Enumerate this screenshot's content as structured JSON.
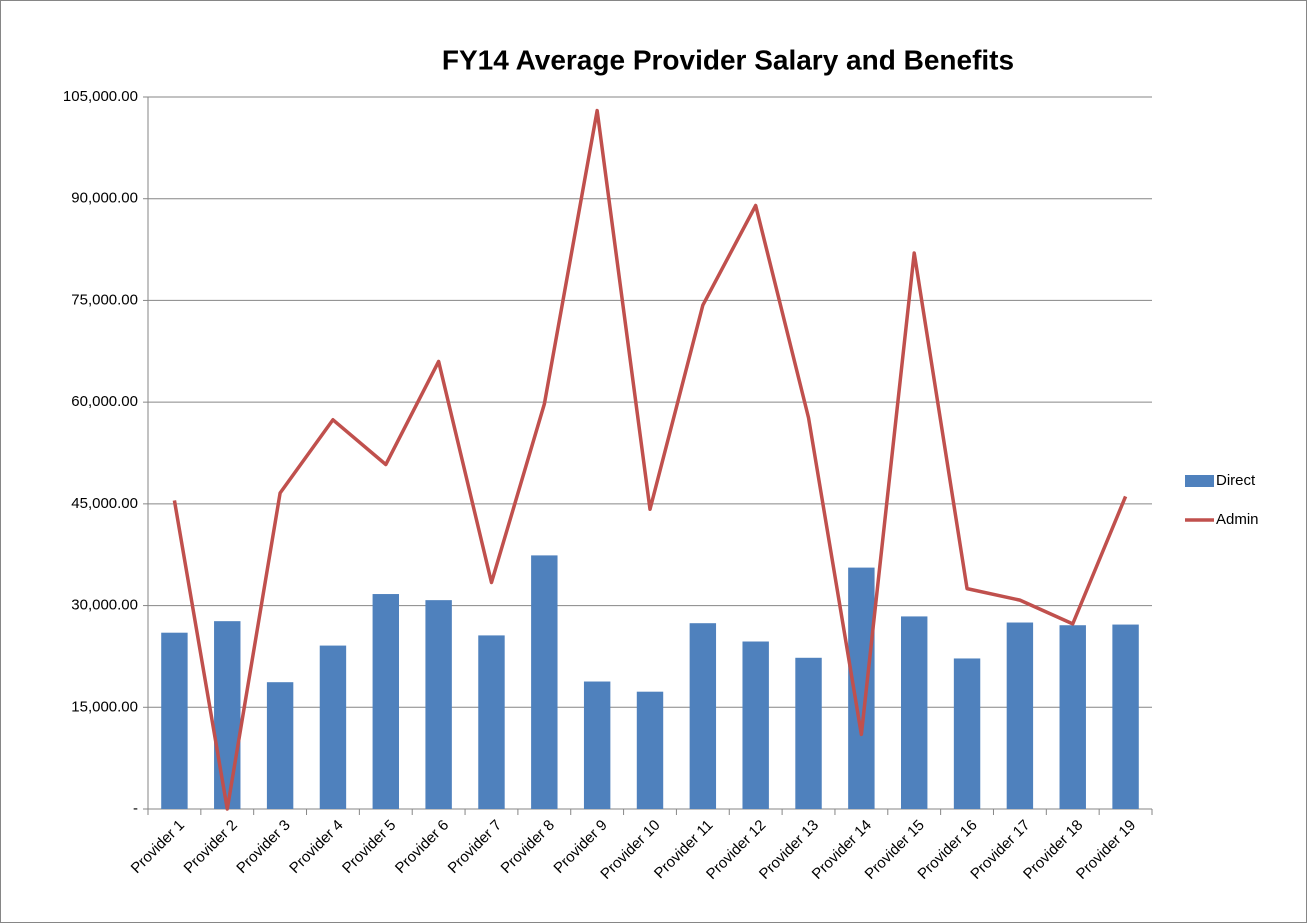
{
  "chart_data": {
    "type": "bar_line",
    "title": "FY14 Average Provider Salary and Benefits",
    "categories": [
      "Provider 1",
      "Provider 2",
      "Provider 3",
      "Provider 4",
      "Provider 5",
      "Provider 6",
      "Provider 7",
      "Provider 8",
      "Provider 9",
      "Provider 10",
      "Provider 11",
      "Provider 12",
      "Provider 13",
      "Provider 14",
      "Provider 15",
      "Provider 16",
      "Provider 17",
      "Provider 18",
      "Provider 19"
    ],
    "series": [
      {
        "name": "Direct",
        "type": "bar",
        "color": "#4f81bd",
        "values": [
          26000,
          27700,
          18700,
          24100,
          31700,
          30800,
          25600,
          37400,
          18800,
          17300,
          27400,
          24700,
          22300,
          35600,
          28400,
          22200,
          27500,
          27100,
          27200
        ]
      },
      {
        "name": "Admin",
        "type": "line",
        "color": "#c0504d",
        "values": [
          45500,
          0,
          46600,
          57400,
          50800,
          66000,
          33400,
          59700,
          103000,
          44200,
          74300,
          89000,
          57700,
          11000,
          82000,
          32500,
          30800,
          27300,
          46100
        ]
      }
    ],
    "ylim": [
      0,
      105000
    ],
    "yticks": [
      {
        "value": 0,
        "label": "-"
      },
      {
        "value": 15000,
        "label": "15,000.00"
      },
      {
        "value": 30000,
        "label": "30,000.00"
      },
      {
        "value": 45000,
        "label": "45,000.00"
      },
      {
        "value": 60000,
        "label": "60,000.00"
      },
      {
        "value": 75000,
        "label": "75,000.00"
      },
      {
        "value": 90000,
        "label": "90,000.00"
      },
      {
        "value": 105000,
        "label": "105,000.00"
      }
    ],
    "grid": true,
    "legend": "right"
  }
}
